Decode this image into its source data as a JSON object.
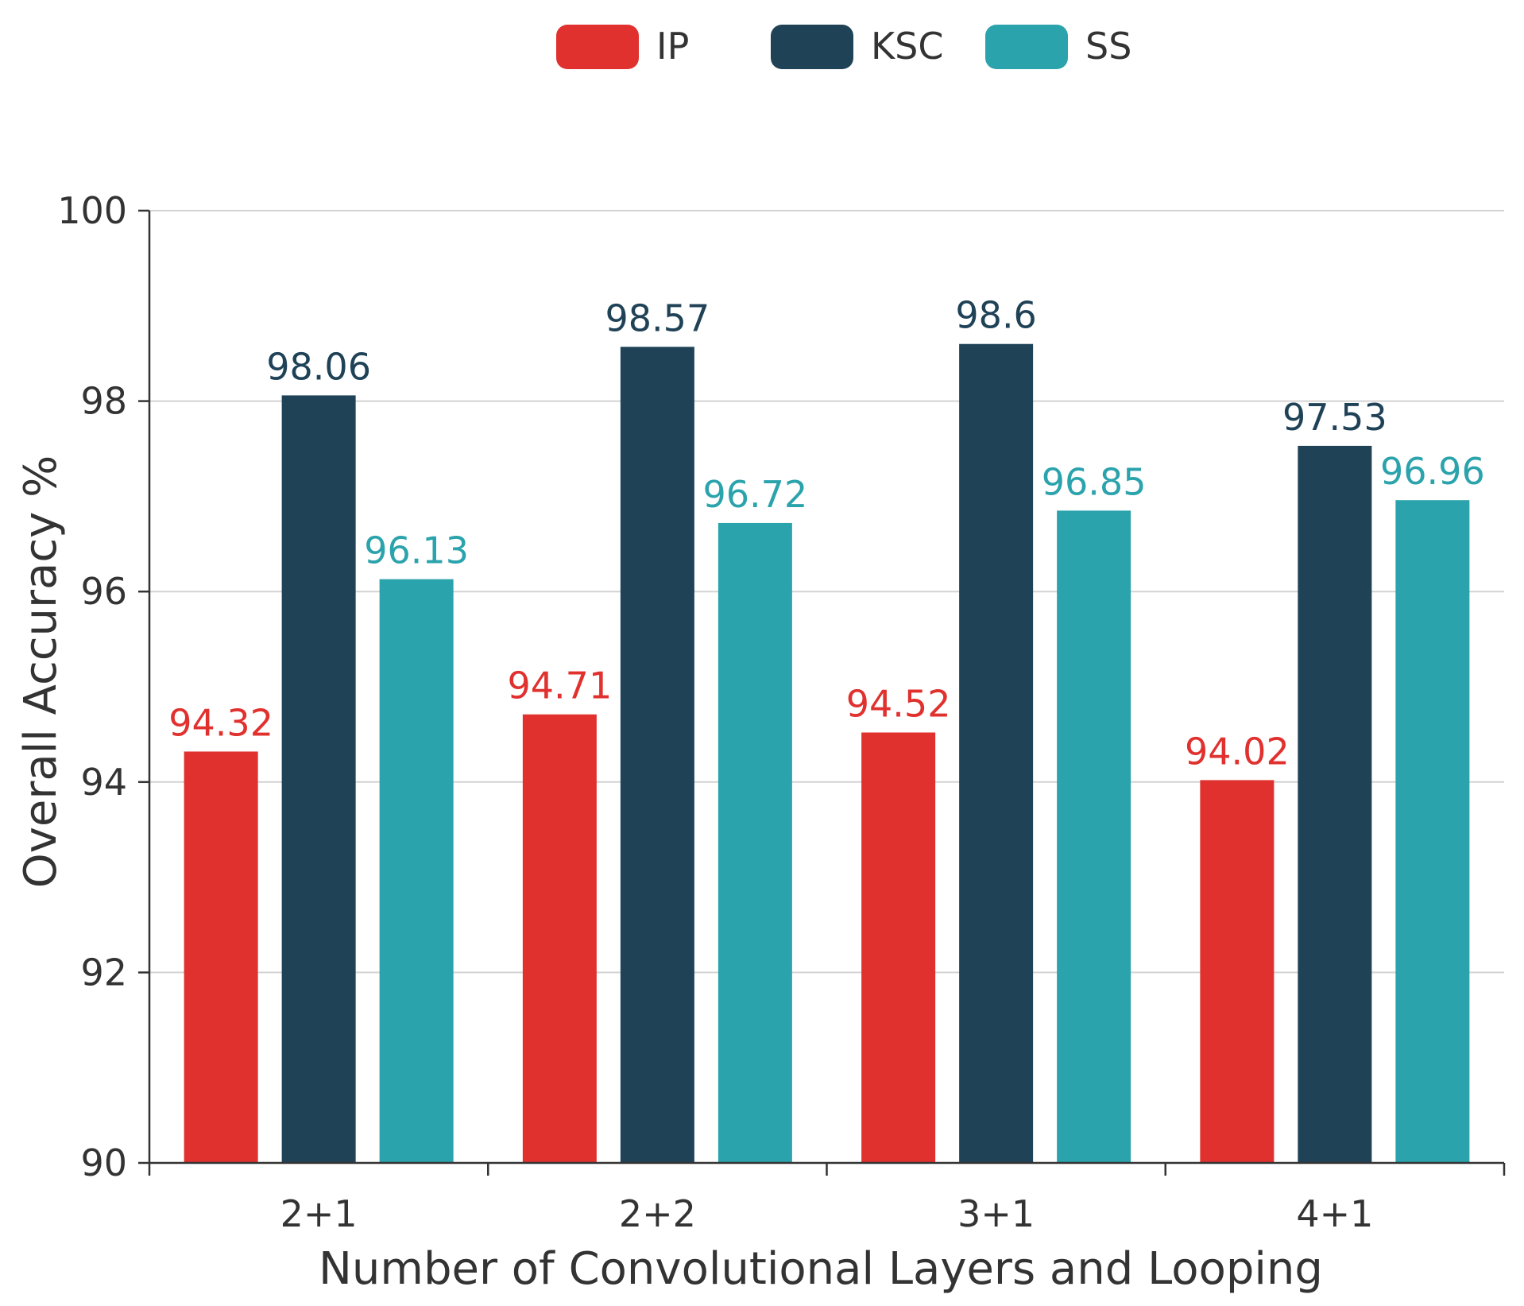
{
  "chart_data": {
    "type": "bar",
    "title": "",
    "xlabel": "Number of Convolutional Layers and Looping",
    "ylabel": "Overall Accuracy %",
    "ylim": [
      90,
      100
    ],
    "yticks": [
      90,
      92,
      94,
      96,
      98,
      100
    ],
    "grid": true,
    "legend_position": "top-center",
    "categories": [
      "2+1",
      "2+2",
      "3+1",
      "4+1"
    ],
    "series": [
      {
        "name": "IP",
        "color": "#e0312e",
        "values": [
          94.32,
          94.71,
          94.52,
          94.02
        ],
        "labels": [
          "94.32",
          "94.71",
          "94.52",
          "94.02"
        ]
      },
      {
        "name": "KSC",
        "color": "#1f4257",
        "values": [
          98.06,
          98.57,
          98.6,
          97.53
        ],
        "labels": [
          "98.06",
          "98.57",
          "98.6",
          "97.53"
        ]
      },
      {
        "name": "SS",
        "color": "#2ba3ac",
        "values": [
          96.13,
          96.72,
          96.85,
          96.96
        ],
        "labels": [
          "96.13",
          "96.72",
          "96.85",
          "96.96"
        ]
      }
    ]
  }
}
